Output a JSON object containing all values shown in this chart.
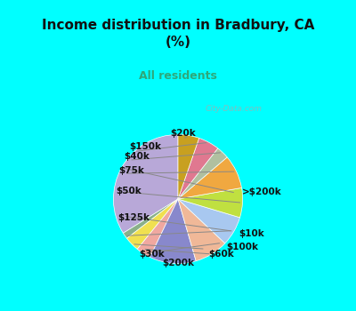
{
  "title": "Income distribution in Bradbury, CA\n(%)",
  "subtitle": "All residents",
  "title_color": "#111111",
  "subtitle_color": "#2ea87a",
  "bg_top": "#00ffff",
  "bg_chart": "#e0f0e8",
  "watermark": "City-Data.com",
  "labels": [
    ">$200k",
    "$10k",
    "$60k",
    "$100k",
    "$200k",
    "$30k",
    "$125k",
    "$50k",
    "$75k",
    "$40k",
    "$150k",
    "$20k"
  ],
  "sizes": [
    32,
    1.5,
    3.5,
    3.5,
    11,
    8,
    7,
    7,
    8,
    3,
    5,
    5
  ],
  "colors": [
    "#b8a8d8",
    "#8ab08a",
    "#f0e050",
    "#f0a8a0",
    "#8888cc",
    "#f0b898",
    "#a8c8f0",
    "#c0e040",
    "#f0a840",
    "#b0c0a0",
    "#e07890",
    "#c8a020"
  ],
  "startangle": 90,
  "label_positions": {
    ">$200k": [
      0.95,
      0.1,
      "left"
    ],
    "$10k": [
      0.9,
      -0.52,
      "left"
    ],
    "$60k": [
      0.45,
      -0.82,
      "left"
    ],
    "$100k": [
      0.72,
      -0.72,
      "left"
    ],
    "$200k": [
      0.0,
      -0.95,
      "center"
    ],
    "$30k": [
      -0.58,
      -0.82,
      "left"
    ],
    "$125k": [
      -0.9,
      -0.28,
      "left"
    ],
    "$50k": [
      -0.92,
      0.12,
      "left"
    ],
    "$75k": [
      -0.88,
      0.42,
      "left"
    ],
    "$40k": [
      -0.8,
      0.64,
      "left"
    ],
    "$150k": [
      -0.72,
      0.78,
      "left"
    ],
    "$20k": [
      0.08,
      0.98,
      "center"
    ]
  }
}
